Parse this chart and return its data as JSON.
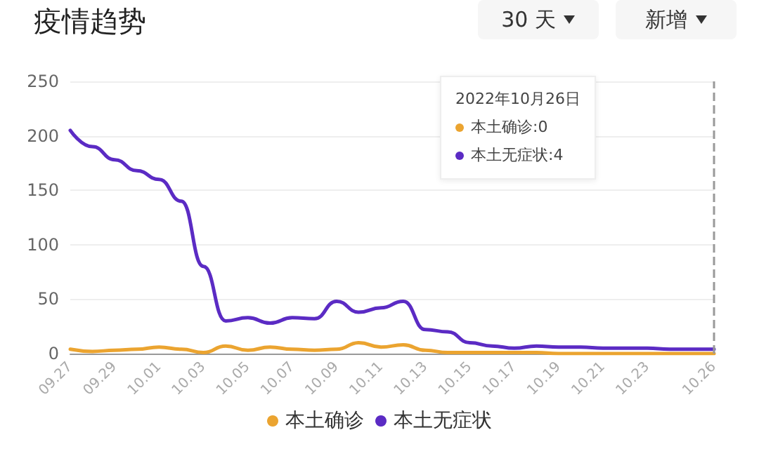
{
  "chart_data": {
    "type": "line",
    "title": "疫情趋势",
    "categories": [
      "09.27",
      null,
      "09.29",
      null,
      "10.01",
      null,
      "10.03",
      null,
      "10.05",
      null,
      "10.07",
      null,
      "10.09",
      null,
      "10.11",
      null,
      "10.13",
      null,
      "10.15",
      null,
      "10.17",
      null,
      "10.19",
      null,
      "10.21",
      null,
      "10.23",
      null,
      null,
      "10.26"
    ],
    "series": [
      {
        "name": "本土确诊",
        "color": "#eba430",
        "values": [
          4,
          2,
          3,
          4,
          6,
          4,
          1,
          7,
          3,
          6,
          4,
          3,
          4,
          10,
          6,
          8,
          3,
          1,
          1,
          1,
          1,
          1,
          0,
          0,
          0,
          0,
          0,
          0,
          0,
          0
        ]
      },
      {
        "name": "本土无症状",
        "color": "#5b2bc4",
        "values": [
          205,
          190,
          178,
          168,
          160,
          140,
          80,
          30,
          33,
          28,
          33,
          32,
          48,
          38,
          42,
          48,
          22,
          20,
          10,
          7,
          5,
          7,
          6,
          6,
          5,
          5,
          5,
          4,
          4,
          4
        ]
      }
    ],
    "ylim": [
      0,
      250
    ],
    "yticks": [
      0,
      50,
      100,
      150,
      200,
      250
    ],
    "grid": "y",
    "legend": "bottom",
    "marker": "none",
    "line_style": "solid",
    "ref_lines": [
      {
        "axis": "x",
        "value": "10.26",
        "color": "#999999",
        "line_style": "dashed"
      }
    ],
    "annotations": [
      "30 天",
      "新增",
      "2022年10月26日",
      "本土确诊:0",
      "本土无症状:4"
    ]
  }
}
